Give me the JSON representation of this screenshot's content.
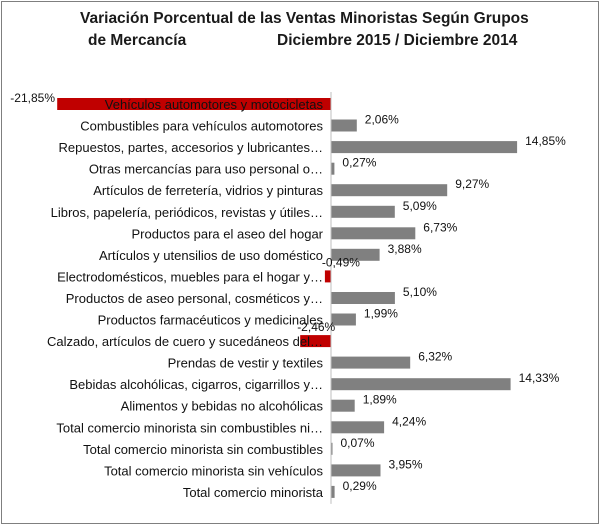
{
  "chart_data": {
    "type": "bar",
    "orientation": "horizontal",
    "title_line1": "Variación Porcentual de las Ventas Minoristas Según Grupos",
    "title_line2_left": "de Mercancía",
    "title_line2_right": "Diciembre 2015 / Diciembre 2014",
    "xlim": [
      -22,
      15
    ],
    "categories": [
      "Vehículos automotores y motocicletas",
      "Combustibles para vehículos automotores",
      "Repuestos, partes, accesorios y lubricantes…",
      "Otras mercancías para uso personal o…",
      "Artículos de ferretería, vidrios y pinturas",
      "Libros, papelería, periódicos, revistas y útiles…",
      "Productos para el aseo del hogar",
      "Artículos y utensilios de uso doméstico",
      "Electrodomésticos, muebles para el hogar y…",
      "Productos de aseo personal, cosméticos y…",
      "Productos farmacéuticos y medicinales",
      "Calzado, artículos de cuero y sucedáneos del…",
      "Prendas de vestir y textiles",
      "Bebidas alcohólicas, cigarros, cigarrillos y…",
      "Alimentos y bebidas no alcohólicas",
      "Total comercio minorista sin combustibles ni…",
      "Total comercio minorista sin combustibles",
      "Total comercio minorista sin vehículos",
      "Total comercio minorista"
    ],
    "values": [
      -21.85,
      2.06,
      14.85,
      0.27,
      9.27,
      5.09,
      6.73,
      3.88,
      -0.49,
      5.1,
      1.99,
      -2.46,
      6.32,
      14.33,
      1.89,
      4.24,
      0.07,
      3.95,
      0.29
    ],
    "labels": [
      "-21,85%",
      "2,06%",
      "14,85%",
      "0,27%",
      "9,27%",
      "5,09%",
      "6,73%",
      "3,88%",
      "-0,49%",
      "5,10%",
      "1,99%",
      "-2,46%",
      "6,32%",
      "14,33%",
      "1,89%",
      "4,24%",
      "0,07%",
      "3,95%",
      "0,29%"
    ],
    "colors": {
      "positive": "#808080",
      "negative": "#c00000"
    }
  }
}
